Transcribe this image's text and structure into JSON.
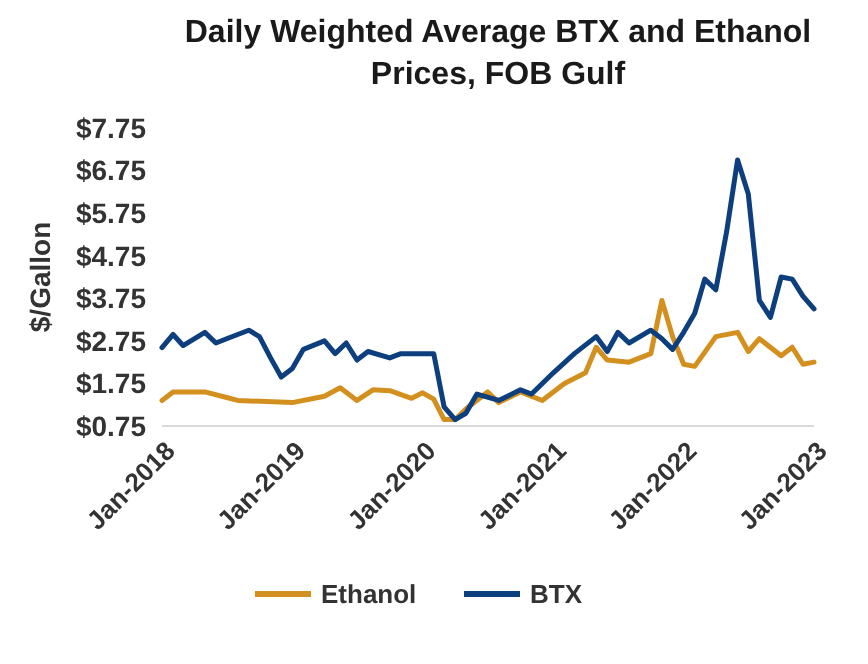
{
  "chart_data": {
    "type": "line",
    "title": "Daily Weighted Average BTX and Ethanol Prices, FOB Gulf",
    "ylabel": "$/Gallon",
    "ylim": [
      0.75,
      7.75
    ],
    "yticks": [
      {
        "value": 0.75,
        "label": "$0.75"
      },
      {
        "value": 1.75,
        "label": "$1.75"
      },
      {
        "value": 2.75,
        "label": "$2.75"
      },
      {
        "value": 3.75,
        "label": "$3.75"
      },
      {
        "value": 4.75,
        "label": "$4.75"
      },
      {
        "value": 5.75,
        "label": "$5.75"
      },
      {
        "value": 6.75,
        "label": "$6.75"
      },
      {
        "value": 7.75,
        "label": "$7.75"
      }
    ],
    "xlim": [
      "2018-01-01",
      "2023-01-01"
    ],
    "xticks": [
      {
        "value": "2018-01-01",
        "label": "Jan-2018"
      },
      {
        "value": "2019-01-01",
        "label": "Jan-2019"
      },
      {
        "value": "2020-01-01",
        "label": "Jan-2020"
      },
      {
        "value": "2021-01-01",
        "label": "Jan-2021"
      },
      {
        "value": "2022-01-01",
        "label": "Jan-2022"
      },
      {
        "value": "2023-01-01",
        "label": "Jan-2023"
      }
    ],
    "grid": false,
    "legend": "bottom",
    "marker": "none",
    "line_style": "solid",
    "series": [
      {
        "name": "Ethanol",
        "color": "#d4901e",
        "x": [
          "2018-01-01",
          "2018-02-01",
          "2018-05-01",
          "2018-07-01",
          "2018-08-01",
          "2019-01-01",
          "2019-04-01",
          "2019-05-15",
          "2019-07-01",
          "2019-08-15",
          "2019-10-01",
          "2019-12-01",
          "2020-01-01",
          "2020-02-01",
          "2020-03-01",
          "2020-04-01",
          "2020-05-01",
          "2020-07-01",
          "2020-08-01",
          "2020-10-01",
          "2020-12-01",
          "2021-02-01",
          "2021-04-01",
          "2021-05-01",
          "2021-06-01",
          "2021-08-01",
          "2021-10-01",
          "2021-11-01",
          "2021-12-01",
          "2022-01-01",
          "2022-02-01",
          "2022-04-01",
          "2022-06-01",
          "2022-07-01",
          "2022-08-01",
          "2022-10-01",
          "2022-11-01",
          "2022-12-01",
          "2023-01-01"
        ],
        "values": [
          1.35,
          1.55,
          1.55,
          1.42,
          1.35,
          1.3,
          1.45,
          1.65,
          1.35,
          1.6,
          1.58,
          1.4,
          1.53,
          1.38,
          0.9,
          0.9,
          1.15,
          1.55,
          1.3,
          1.55,
          1.35,
          1.75,
          2.0,
          2.6,
          2.3,
          2.25,
          2.45,
          3.7,
          2.85,
          2.2,
          2.15,
          2.85,
          2.95,
          2.5,
          2.8,
          2.4,
          2.6,
          2.2,
          2.25
        ]
      },
      {
        "name": "BTX",
        "color": "#0d3f7f",
        "x": [
          "2018-01-01",
          "2018-02-01",
          "2018-03-01",
          "2018-05-01",
          "2018-06-01",
          "2018-07-01",
          "2018-09-01",
          "2018-10-01",
          "2018-11-01",
          "2018-12-01",
          "2019-01-01",
          "2019-02-01",
          "2019-04-01",
          "2019-05-01",
          "2019-06-01",
          "2019-07-01",
          "2019-08-01",
          "2019-10-01",
          "2019-11-01",
          "2020-01-01",
          "2020-02-01",
          "2020-03-01",
          "2020-04-01",
          "2020-05-01",
          "2020-06-01",
          "2020-08-01",
          "2020-10-01",
          "2020-11-01",
          "2021-01-01",
          "2021-03-01",
          "2021-05-01",
          "2021-06-01",
          "2021-07-01",
          "2021-08-01",
          "2021-10-01",
          "2021-11-01",
          "2021-12-01",
          "2022-01-01",
          "2022-02-01",
          "2022-03-01",
          "2022-04-01",
          "2022-05-01",
          "2022-06-01",
          "2022-07-01",
          "2022-08-01",
          "2022-09-01",
          "2022-10-01",
          "2022-11-01",
          "2022-12-01",
          "2023-01-01"
        ],
        "values": [
          2.59,
          2.9,
          2.64,
          2.95,
          2.7,
          2.8,
          3.0,
          2.85,
          2.35,
          1.9,
          2.1,
          2.55,
          2.75,
          2.45,
          2.7,
          2.3,
          2.5,
          2.35,
          2.45,
          2.45,
          2.45,
          1.2,
          0.9,
          1.05,
          1.5,
          1.35,
          1.6,
          1.5,
          2.0,
          2.45,
          2.85,
          2.5,
          2.95,
          2.7,
          3.0,
          2.8,
          2.55,
          2.95,
          3.4,
          4.2,
          3.95,
          5.3,
          7.0,
          6.2,
          3.7,
          3.3,
          4.25,
          4.2,
          3.8,
          3.5
        ]
      }
    ]
  }
}
